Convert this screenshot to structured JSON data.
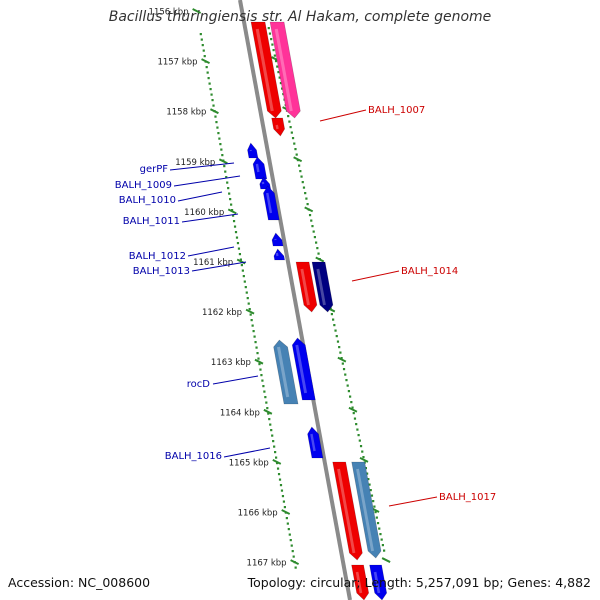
{
  "title": "Bacillus thuringiensis str. Al Hakam, complete genome",
  "accession": "Accession: NC_008600",
  "summary": "Topology: circular; Length: 5,257,091 bp; Genes: 4,882",
  "colors": {
    "backbone": "#8a8a8a",
    "ticks": "#2e8b2e",
    "forward_gene": "#0000ee",
    "reverse_gene": "#ee0000",
    "forward_label": "#0000aa",
    "reverse_label": "#cc0000",
    "pink": "#ff3399",
    "steel": "#4682b4",
    "navy": "#000080"
  },
  "kbp_ticks": [
    {
      "value": 1156,
      "label": "1156 kbp"
    },
    {
      "value": 1157,
      "label": "1157 kbp"
    },
    {
      "value": 1158,
      "label": "1158 kbp"
    },
    {
      "value": 1159,
      "label": "1159 kbp"
    },
    {
      "value": 1160,
      "label": "1160 kbp"
    },
    {
      "value": 1161,
      "label": "1161 kbp"
    },
    {
      "value": 1162,
      "label": "1162 kbp"
    },
    {
      "value": 1163,
      "label": "1163 kbp"
    },
    {
      "value": 1164,
      "label": "1164 kbp"
    },
    {
      "value": 1165,
      "label": "1165 kbp"
    },
    {
      "value": 1166,
      "label": "1166 kbp"
    },
    {
      "value": 1167,
      "label": "1167 kbp"
    }
  ],
  "genes": [
    {
      "name": "BALH_1007",
      "strand": "-",
      "labeled": true
    },
    {
      "name": "gerPF",
      "strand": "+",
      "labeled": true
    },
    {
      "name": "BALH_1009",
      "strand": "+",
      "labeled": true
    },
    {
      "name": "BALH_1010",
      "strand": "+",
      "labeled": true
    },
    {
      "name": "BALH_1011",
      "strand": "+",
      "labeled": true
    },
    {
      "name": "BALH_1012",
      "strand": "+",
      "labeled": true
    },
    {
      "name": "BALH_1013",
      "strand": "+",
      "labeled": true
    },
    {
      "name": "BALH_1014",
      "strand": "-",
      "labeled": true
    },
    {
      "name": "rocD",
      "strand": "+",
      "labeled": true
    },
    {
      "name": "BALH_1016",
      "strand": "+",
      "labeled": true
    },
    {
      "name": "BALH_1017",
      "strand": "-",
      "labeled": true
    }
  ]
}
